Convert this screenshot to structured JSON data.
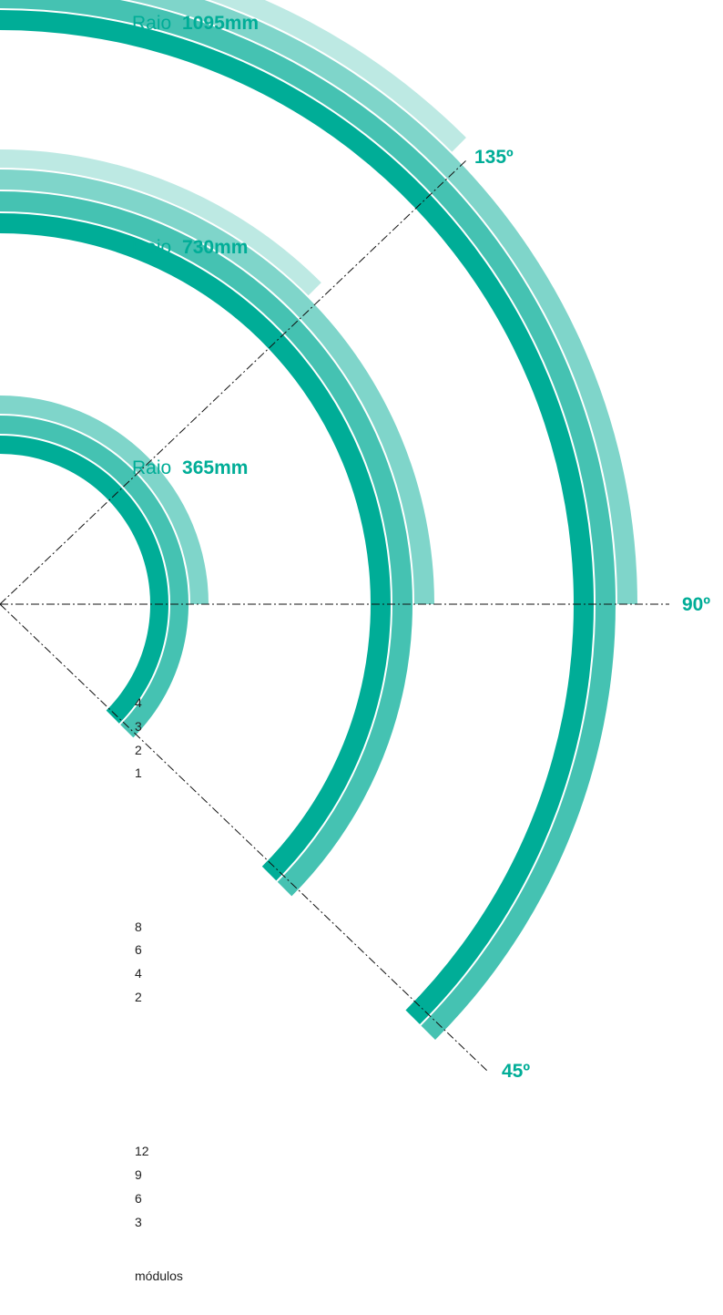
{
  "colors": {
    "band_main": "#00ad97",
    "band_2": "#45c2b2",
    "band_3": "#7fd5ca",
    "band_4": "#bde9e3",
    "guide_line": "#111111",
    "label_text": "#00ad97",
    "small_text": "#222222"
  },
  "radius_labels": [
    {
      "prefix": "Raio",
      "value": "1095mm"
    },
    {
      "prefix": "Raio",
      "value": "730mm"
    },
    {
      "prefix": "Raio",
      "value": "365mm"
    }
  ],
  "angle_labels": [
    "135º",
    "90º",
    "45º"
  ],
  "rings": [
    {
      "radius": "365mm",
      "modules": [
        "4",
        "3",
        "2",
        "1"
      ]
    },
    {
      "radius": "730mm",
      "modules": [
        "8",
        "6",
        "4",
        "2"
      ]
    },
    {
      "radius": "1095mm",
      "modules": [
        "12",
        "9",
        "6",
        "3"
      ]
    }
  ],
  "footer_label": "módulos"
}
